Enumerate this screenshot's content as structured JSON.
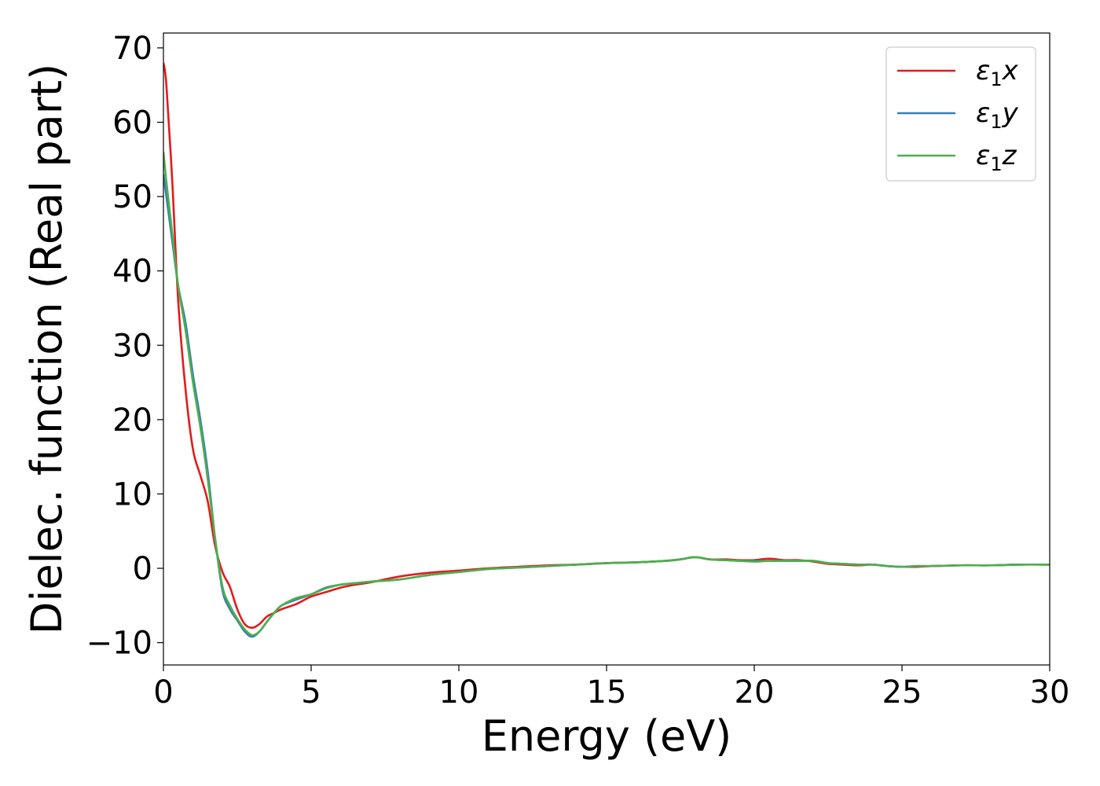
{
  "chart_data": {
    "type": "line",
    "title": "",
    "xlabel": "Energy (eV)",
    "ylabel": "Dielec. function (Real part)",
    "xlim": [
      0,
      30
    ],
    "ylim": [
      -13,
      72
    ],
    "xticks": [
      0,
      5,
      10,
      15,
      20,
      25,
      30
    ],
    "xtick_labels": [
      "0",
      "5",
      "10",
      "15",
      "20",
      "25",
      "30"
    ],
    "yticks": [
      -10,
      0,
      10,
      20,
      30,
      40,
      50,
      60,
      70
    ],
    "ytick_labels": [
      "−10",
      "0",
      "10",
      "20",
      "30",
      "40",
      "50",
      "60",
      "70"
    ],
    "grid": false,
    "legend_position": "top-right",
    "series": [
      {
        "name": "ε₁x",
        "name_base": "ε",
        "name_sub": "1",
        "name_tail": "x",
        "color": "#e41a1c",
        "x": [
          0,
          0.1,
          0.3,
          0.5,
          0.75,
          1.0,
          1.25,
          1.5,
          1.75,
          2.0,
          2.25,
          2.5,
          2.75,
          3.0,
          3.25,
          3.5,
          3.75,
          4.0,
          4.5,
          5.0,
          5.5,
          6.0,
          6.5,
          7.0,
          8.0,
          9.0,
          10.0,
          11.0,
          12.0,
          13.0,
          14.0,
          15.0,
          16.0,
          17.0,
          17.5,
          18.0,
          18.5,
          19.0,
          19.5,
          20.0,
          20.5,
          21.0,
          21.5,
          22.0,
          22.5,
          23.0,
          23.5,
          24.0,
          24.5,
          25.0,
          25.5,
          26.0,
          27.0,
          28.0,
          29.0,
          30.0
        ],
        "y": [
          68,
          65,
          52,
          36,
          24,
          16,
          12.5,
          9,
          3,
          -0.5,
          -2.5,
          -5.5,
          -7.5,
          -8,
          -7.5,
          -6.5,
          -6,
          -5.5,
          -4.8,
          -3.8,
          -3.2,
          -2.6,
          -2.2,
          -1.9,
          -1.1,
          -0.6,
          -0.3,
          0,
          0.2,
          0.4,
          0.5,
          0.7,
          0.8,
          1.0,
          1.2,
          1.5,
          1.2,
          1.2,
          1.1,
          1.1,
          1.3,
          1.1,
          1.1,
          0.9,
          0.6,
          0.5,
          0.4,
          0.5,
          0.3,
          0.2,
          0.2,
          0.3,
          0.4,
          0.4,
          0.5,
          0.5
        ]
      },
      {
        "name": "ε₁y",
        "name_base": "ε",
        "name_sub": "1",
        "name_tail": "y",
        "color": "#377eb8",
        "x": [
          0,
          0.1,
          0.3,
          0.5,
          0.75,
          1.0,
          1.25,
          1.5,
          1.75,
          2.0,
          2.25,
          2.5,
          2.75,
          3.0,
          3.25,
          3.5,
          3.75,
          4.0,
          4.5,
          5.0,
          5.5,
          6.0,
          6.5,
          7.0,
          8.0,
          9.0,
          10.0,
          11.0,
          12.0,
          13.0,
          14.0,
          15.0,
          16.0,
          17.0,
          17.5,
          18.0,
          18.5,
          19.0,
          19.5,
          20.0,
          20.5,
          21.0,
          21.5,
          22.0,
          22.5,
          23.0,
          23.5,
          24.0,
          24.5,
          25.0,
          25.5,
          26.0,
          27.0,
          28.0,
          29.0,
          30.0
        ],
        "y": [
          53,
          50,
          44,
          38,
          33,
          26,
          20,
          13,
          4,
          -3,
          -5.5,
          -7,
          -8.5,
          -9.2,
          -8.5,
          -7.2,
          -6.0,
          -5.0,
          -4.2,
          -3.5,
          -2.6,
          -2.2,
          -2.0,
          -1.8,
          -1.5,
          -0.9,
          -0.5,
          -0.1,
          0.1,
          0.3,
          0.5,
          0.7,
          0.8,
          1.0,
          1.2,
          1.5,
          1.2,
          1.1,
          1.0,
          1.0,
          1.0,
          1.0,
          1.0,
          1.0,
          0.7,
          0.6,
          0.5,
          0.5,
          0.3,
          0.2,
          0.3,
          0.3,
          0.4,
          0.4,
          0.5,
          0.5
        ]
      },
      {
        "name": "ε₁z",
        "name_base": "ε",
        "name_sub": "1",
        "name_tail": "z",
        "color": "#4daf4a",
        "x": [
          0,
          0.1,
          0.3,
          0.5,
          0.75,
          1.0,
          1.25,
          1.5,
          1.75,
          2.0,
          2.25,
          2.5,
          2.75,
          3.0,
          3.25,
          3.5,
          3.75,
          4.0,
          4.5,
          5.0,
          5.5,
          6.0,
          6.5,
          7.0,
          8.0,
          9.0,
          10.0,
          11.0,
          12.0,
          13.0,
          14.0,
          15.0,
          16.0,
          17.0,
          17.5,
          18.0,
          18.5,
          19.0,
          19.5,
          20.0,
          20.5,
          21.0,
          21.5,
          22.0,
          22.5,
          23.0,
          23.5,
          24.0,
          24.5,
          25.0,
          25.5,
          26.0,
          27.0,
          28.0,
          29.0,
          30.0
        ],
        "y": [
          56,
          52,
          45,
          38,
          32,
          25,
          19,
          12,
          4,
          -2.5,
          -5,
          -6.8,
          -8.2,
          -9,
          -8.5,
          -7.2,
          -6.0,
          -5.0,
          -4.0,
          -3.5,
          -2.7,
          -2.2,
          -2.0,
          -1.8,
          -1.5,
          -0.9,
          -0.5,
          -0.1,
          0.1,
          0.3,
          0.5,
          0.7,
          0.8,
          1.0,
          1.2,
          1.5,
          1.2,
          1.1,
          1.0,
          0.9,
          1.0,
          1.0,
          1.0,
          1.0,
          0.7,
          0.6,
          0.5,
          0.5,
          0.3,
          0.2,
          0.3,
          0.3,
          0.4,
          0.4,
          0.5,
          0.5
        ]
      }
    ]
  }
}
